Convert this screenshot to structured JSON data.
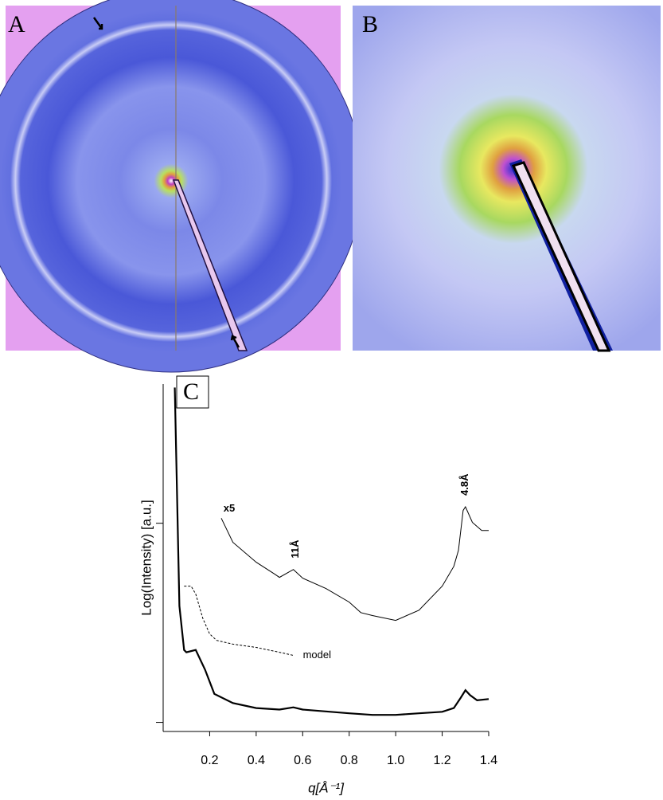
{
  "panels": [
    {
      "label": "A"
    },
    {
      "label": "B"
    }
  ],
  "chart_data": {
    "type": "line",
    "panel_label": "C",
    "x_label": "q[Å⁻¹]",
    "y_label": "Log(Intensity)  [a.u.]",
    "xlim": [
      0,
      1.4
    ],
    "xticks": [
      0.2,
      0.4,
      0.6,
      0.8,
      {
        "value": 1,
        "label": "1.0"
      },
      1.2,
      1.4
    ],
    "ylim": [
      0.9,
      50
    ],
    "yticks": [
      1,
      10
    ],
    "log_y": true,
    "series": [
      {
        "color": "#000000",
        "style": "solid-thick",
        "x": [
          0.05,
          0.07,
          0.09,
          0.1,
          0.14,
          0.18,
          0.22,
          0.3,
          0.4,
          0.5,
          0.56,
          0.6,
          0.8,
          0.9,
          1.0,
          1.1,
          1.2,
          1.25,
          1.28,
          1.3,
          1.32,
          1.35,
          1.4
        ],
        "values": [
          48,
          3.84,
          2.31,
          2.25,
          2.31,
          1.84,
          1.39,
          1.25,
          1.18,
          1.16,
          1.19,
          1.16,
          1.11,
          1.09,
          1.09,
          1.11,
          1.13,
          1.18,
          1.33,
          1.45,
          1.37,
          1.29,
          1.31
        ]
      },
      {
        "name": "x5",
        "color": "#000000",
        "style": "solid-thin",
        "x": [
          0.25,
          0.3,
          0.4,
          0.48,
          0.5,
          0.56,
          0.6,
          0.7,
          0.8,
          0.85,
          0.9,
          1.0,
          1.1,
          1.2,
          1.25,
          1.27,
          1.29,
          1.3,
          1.33,
          1.37,
          1.4
        ],
        "values": [
          10.6,
          8.02,
          6.37,
          5.55,
          5.35,
          5.86,
          5.3,
          4.7,
          4.02,
          3.56,
          3.44,
          3.25,
          3.66,
          4.83,
          6.08,
          7.31,
          11.6,
          12.1,
          10.1,
          9.2,
          9.2
        ]
      },
      {
        "name": "model",
        "color": "#000000",
        "style": "dashed",
        "x": [
          0.09,
          0.12,
          0.14,
          0.17,
          0.2,
          0.23,
          0.3,
          0.4,
          0.5,
          0.56
        ],
        "values": [
          4.83,
          4.83,
          4.41,
          3.34,
          2.78,
          2.58,
          2.47,
          2.38,
          2.25,
          2.17
        ]
      }
    ],
    "annotations": [
      {
        "text": "11Å",
        "x": 0.57
      },
      {
        "text": "4.8Å",
        "x": 1.3
      }
    ]
  }
}
